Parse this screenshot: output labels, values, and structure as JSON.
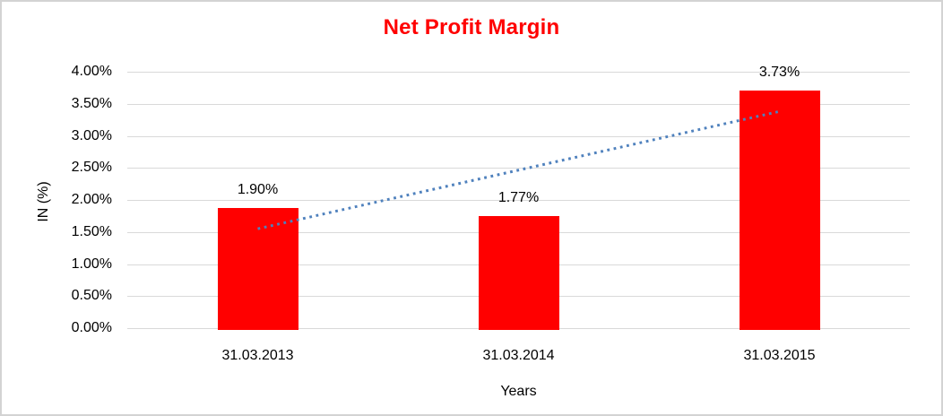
{
  "window": {
    "background": "#ffffff",
    "border_color": "#d3d3d3"
  },
  "chart_data": {
    "type": "bar",
    "title": "Net Profit Margin",
    "title_color": "#ff0000",
    "categories": [
      "31.03.2013",
      "31.03.2014",
      "31.03.2015"
    ],
    "values": [
      1.9,
      1.77,
      3.73
    ],
    "value_labels": [
      "1.90%",
      "1.77%",
      "3.73%"
    ],
    "xlabel": "Years",
    "ylabel": "IN (%)",
    "ylim": [
      0,
      4
    ],
    "ytick_step": 0.5,
    "ytick_labels": [
      "0.00%",
      "0.50%",
      "1.00%",
      "1.50%",
      "2.00%",
      "2.50%",
      "3.00%",
      "3.50%",
      "4.00%"
    ],
    "grid": true,
    "legend": "none",
    "bar_color": "#ff0000",
    "gridline_color": "#d9d9d9",
    "text_color": "#000000",
    "trendline": {
      "type": "linear",
      "style": "dotted",
      "color": "#4f81bd",
      "start": {
        "category_index": 0,
        "value": 1.55
      },
      "end": {
        "category_index": 2,
        "value": 3.38
      }
    }
  }
}
